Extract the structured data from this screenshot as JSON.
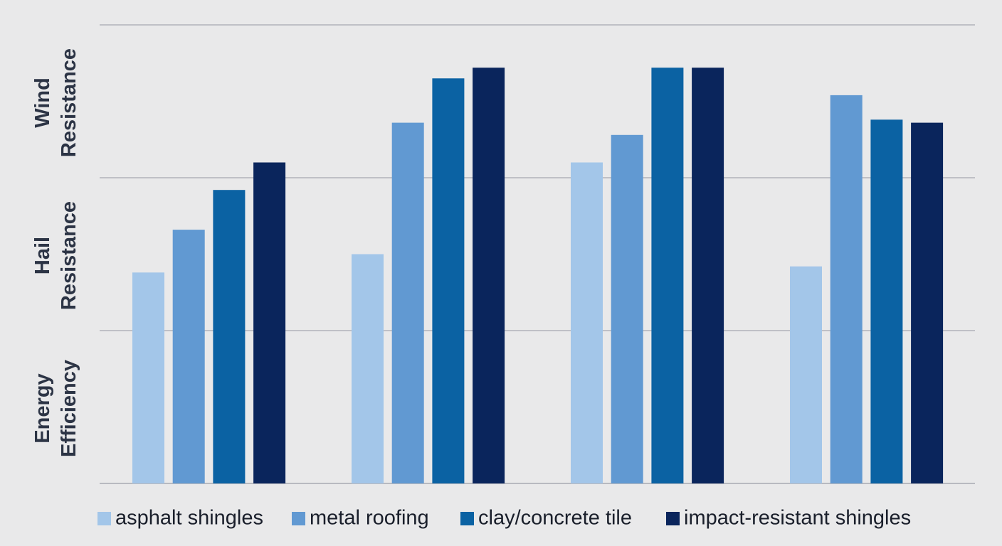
{
  "chart_data": {
    "type": "bar",
    "title": "",
    "xlabel": "",
    "ylabel": "",
    "categories": [
      "",
      "",
      "",
      ""
    ],
    "y_band_labels": [
      {
        "line1": "Wind",
        "line2": "Resistance"
      },
      {
        "line1": "Hail",
        "line2": "Resistance"
      },
      {
        "line1": "Energy",
        "line2": "Efficiency"
      }
    ],
    "ylim": [
      0,
      3
    ],
    "grid": true,
    "legend_position": "bottom",
    "series": [
      {
        "name": "asphalt shingles",
        "color": "#a3c6e9",
        "values": [
          1.38,
          1.5,
          2.1,
          1.42
        ]
      },
      {
        "name": "metal roofing",
        "color": "#6199d2",
        "values": [
          1.66,
          2.36,
          2.28,
          2.54
        ]
      },
      {
        "name": "clay/concrete tile",
        "color": "#0b62a3",
        "values": [
          1.92,
          2.65,
          2.72,
          2.38
        ]
      },
      {
        "name": "impact-resistant shingles",
        "color": "#0a255c",
        "values": [
          2.1,
          2.72,
          2.72,
          2.36
        ]
      }
    ]
  }
}
